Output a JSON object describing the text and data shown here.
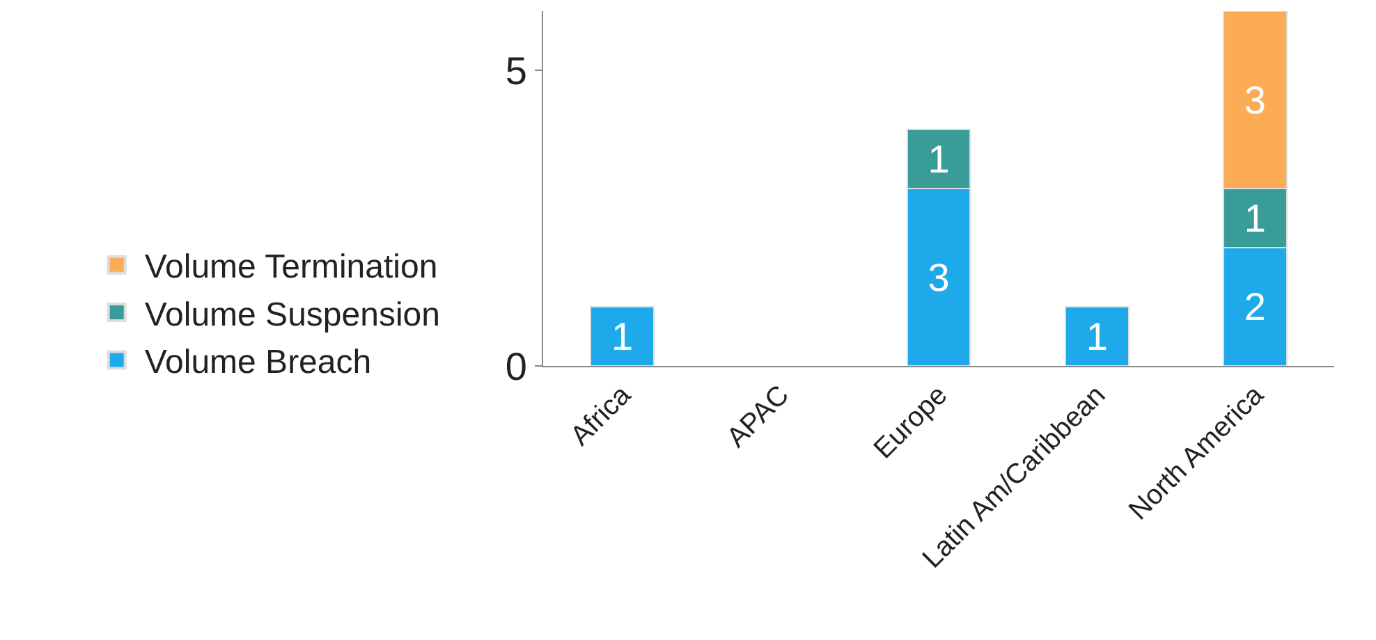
{
  "chart_data": {
    "type": "bar",
    "stacked": true,
    "categories": [
      "Africa",
      "APAC",
      "Europe",
      "Latin Am/Caribbean",
      "North America"
    ],
    "series": [
      {
        "name": "Volume Breach",
        "color": "#1eaaea",
        "values": [
          1,
          null,
          3,
          1,
          2
        ]
      },
      {
        "name": "Volume Suspension",
        "color": "#3a9c98",
        "values": [
          null,
          null,
          1,
          null,
          1
        ]
      },
      {
        "name": "Volume Termination",
        "color": "#fbac55",
        "values": [
          null,
          null,
          null,
          null,
          3
        ]
      }
    ],
    "ylim": [
      0,
      6
    ],
    "yticks": [
      0,
      5
    ],
    "legend": "left",
    "data_labels": true
  }
}
